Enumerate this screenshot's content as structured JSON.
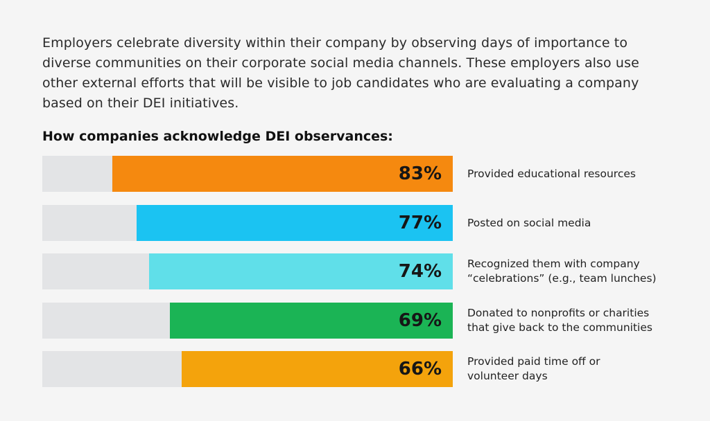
{
  "intro_text": "Employers celebrate diversity within their company by observing days of importance to diverse communities on their corporate social media channels. These employers also use other external efforts that will be visible to job candidates who are evaluating a company based on their DEI initiatives.",
  "chart_data": {
    "type": "bar",
    "orientation": "horizontal",
    "title": "How companies acknowledge DEI observances:",
    "categories": [
      "Provided educational resources",
      "Posted on social media",
      "Recognized them with company\n“celebrations” (e.g., team lunches)",
      "Donated to nonprofits or charities\nthat give back to the communities",
      "Provided paid time off or\nvolunteer days"
    ],
    "values": [
      83,
      77,
      74,
      69,
      66
    ],
    "value_labels": [
      "83%",
      "77%",
      "74%",
      "69%",
      "66%"
    ],
    "unit": "%",
    "xlim": [
      0,
      100
    ],
    "colors": [
      "#f5890f",
      "#1bc3f2",
      "#60dfe9",
      "#1bb455",
      "#f4a30c"
    ],
    "track_color": "#e3e4e6",
    "grid": false,
    "legend": "none"
  }
}
